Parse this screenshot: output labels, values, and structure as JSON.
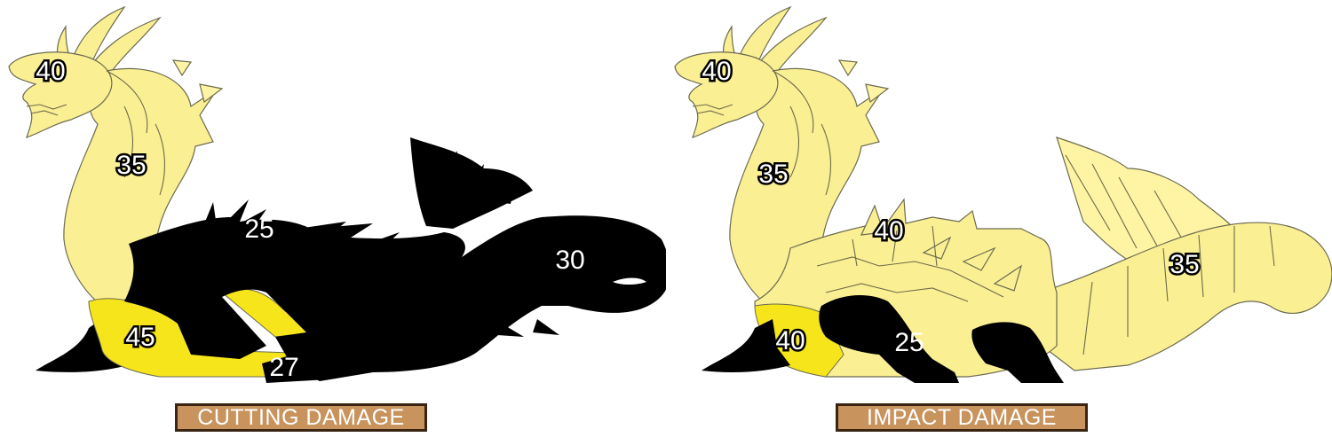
{
  "panels": [
    {
      "caption": "CUTTING DAMAGE",
      "values": {
        "head": "40",
        "neck": "35",
        "back": "25",
        "tail": "30",
        "belly": "45",
        "legs": "27"
      }
    },
    {
      "caption": "IMPACT DAMAGE",
      "values": {
        "head": "40",
        "neck": "35",
        "back": "40",
        "tail": "35",
        "belly": "40",
        "legs": "25"
      }
    }
  ],
  "colors": {
    "skin": "#fbef93",
    "belly": "#f6e51a",
    "silhouette": "#000000",
    "caption_bg": "#c8935c",
    "caption_border": "#3a2513"
  }
}
